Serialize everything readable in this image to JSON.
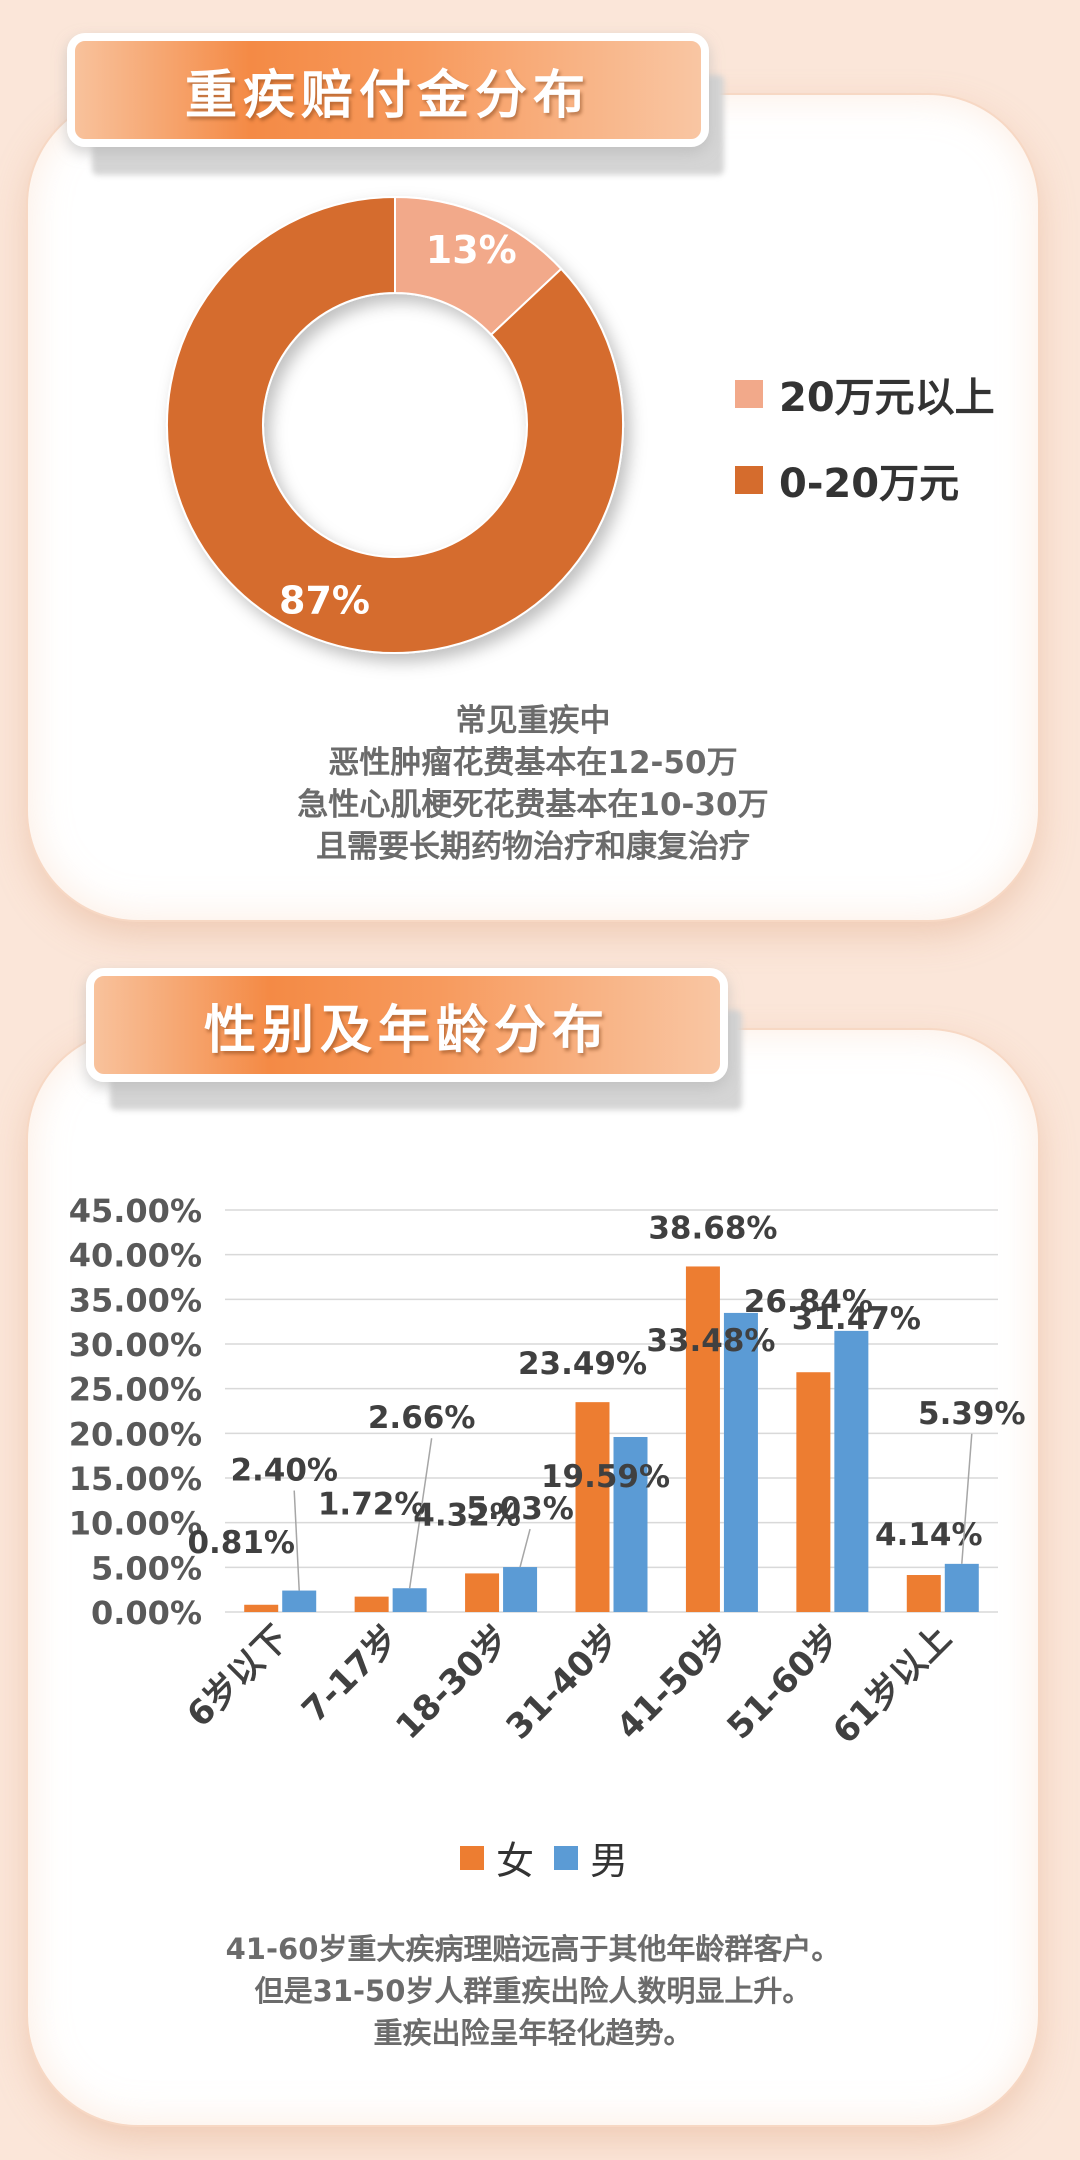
{
  "section1": {
    "title": "重疾赔付金分布",
    "legend": [
      {
        "label": "20万元以上",
        "color": "#f2a98a"
      },
      {
        "label": "0-20万元",
        "color": "#d56c2d"
      }
    ],
    "notes": [
      "常见重疾中",
      "恶性肿瘤花费基本在12-50万",
      "急性心肌梗死花费基本在10-30万",
      "且需要长期药物治疗和康复治疗"
    ]
  },
  "section2": {
    "title": "性别及年龄分布",
    "legend": [
      {
        "label": "女",
        "color": "#ed7d31"
      },
      {
        "label": "男",
        "color": "#5b9bd5"
      }
    ],
    "notes": [
      "41-60岁重大疾病理赔远高于其他年龄群客户。",
      "但是31-50岁人群重疾出险人数明显上升。",
      "重疾出险呈年轻化趋势。"
    ]
  },
  "chart_data": [
    {
      "type": "pie",
      "donut": true,
      "title": "重疾赔付金分布",
      "labels": [
        "20万元以上",
        "0-20万元"
      ],
      "values": [
        13,
        87
      ],
      "value_labels": [
        "13%",
        "87%"
      ],
      "colors": [
        "#f2a98a",
        "#d56c2d"
      ],
      "legend": "right"
    },
    {
      "type": "bar",
      "title": "性别及年龄分布",
      "categories": [
        "6岁以下",
        "7-17岁",
        "18-30岁",
        "31-40岁",
        "41-50岁",
        "51-60岁",
        "61岁以上"
      ],
      "series": [
        {
          "name": "女",
          "color": "#ed7d31",
          "values": [
            0.81,
            1.72,
            4.32,
            23.49,
            38.68,
            26.84,
            4.14
          ],
          "labels": [
            "0.81%",
            "1.72%",
            "4.32%",
            "23.49%",
            "38.68%",
            "26.84%",
            "4.14%"
          ]
        },
        {
          "name": "男",
          "color": "#5b9bd5",
          "values": [
            2.4,
            2.66,
            5.03,
            19.59,
            33.48,
            31.47,
            5.39
          ],
          "labels": [
            "2.40%",
            "2.66%",
            "5.03%",
            "19.59%",
            "33.48%",
            "31.47%",
            "5.39%"
          ]
        }
      ],
      "yticks": [
        "0.00%",
        "5.00%",
        "10.00%",
        "15.00%",
        "20.00%",
        "25.00%",
        "30.00%",
        "35.00%",
        "40.00%",
        "45.00%"
      ],
      "ylim": [
        0,
        45
      ],
      "grid": true,
      "legend": "bottom"
    }
  ]
}
